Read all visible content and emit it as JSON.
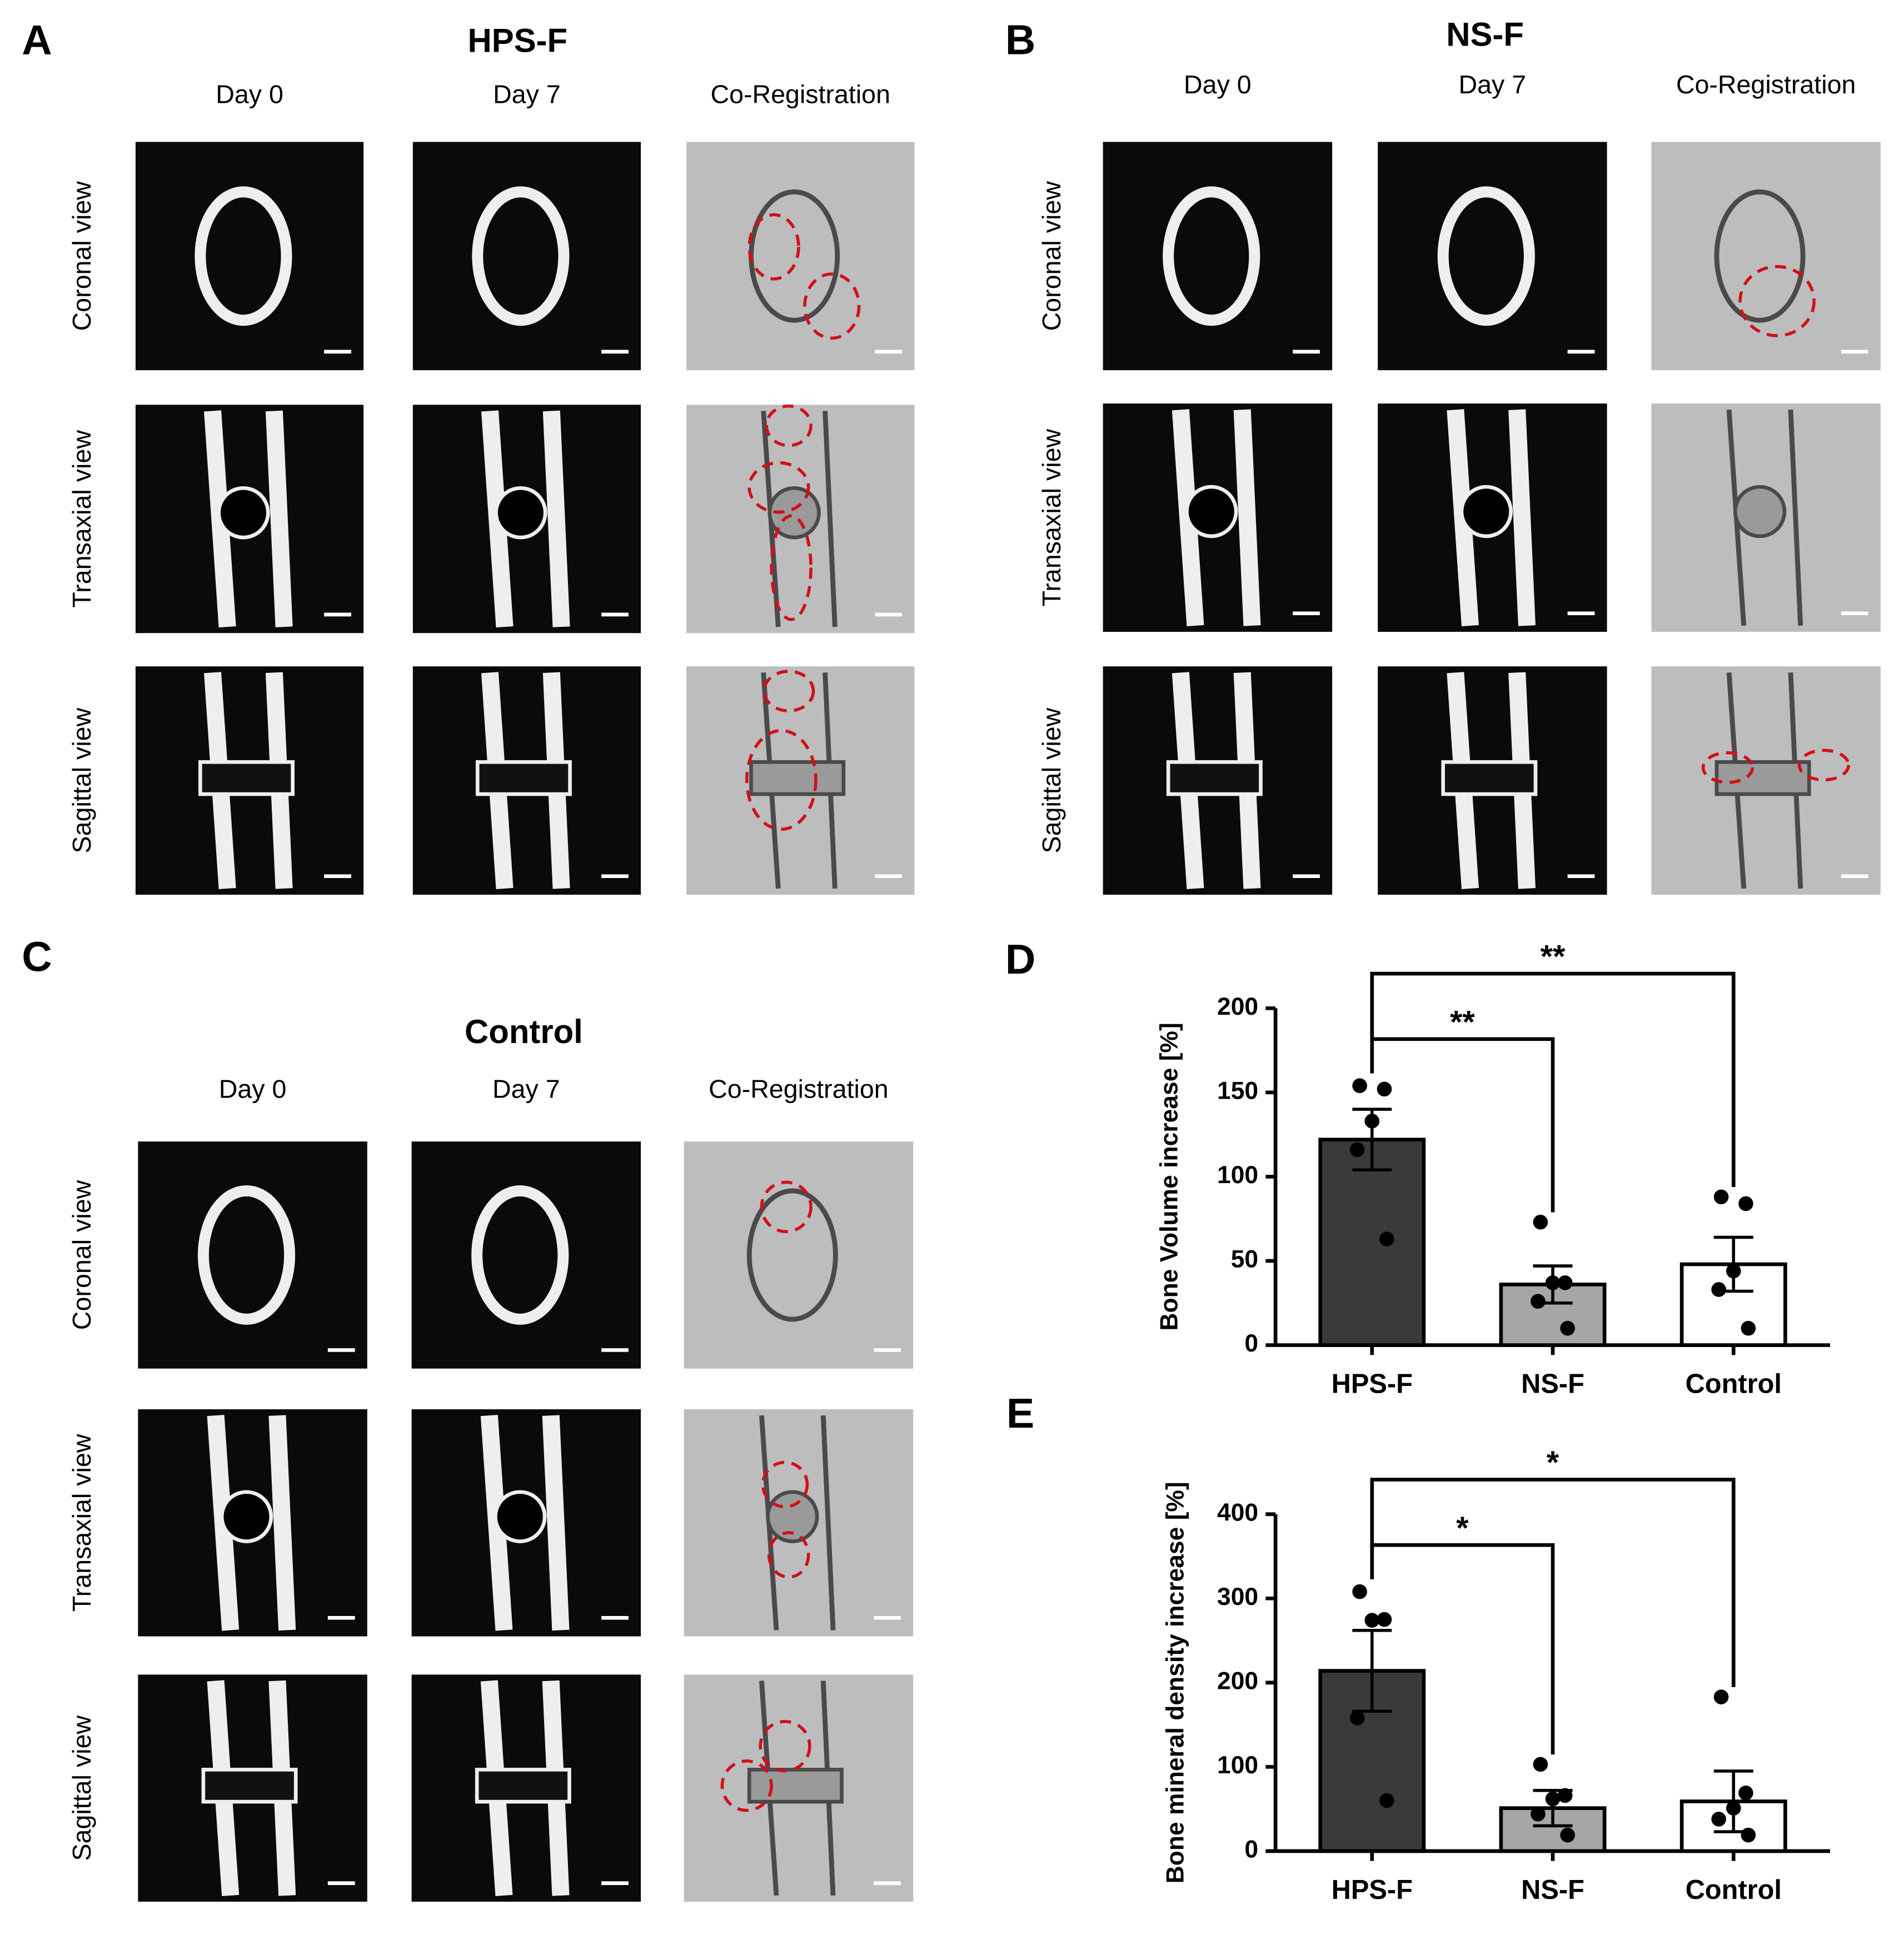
{
  "panels": [
    {
      "letter": "A",
      "title": "HPS-F",
      "columns": [
        "Day 0",
        "Day 7",
        "Co-Registration"
      ],
      "rows": [
        "Coronal view",
        "Transaxial view",
        "Sagittal view"
      ]
    },
    {
      "letter": "B",
      "title": "NS-F",
      "columns": [
        "Day 0",
        "Day 7",
        "Co-Registration"
      ],
      "rows": [
        "Coronal view",
        "Transaxial view",
        "Sagittal view"
      ]
    },
    {
      "letter": "C",
      "title": "Control",
      "columns": [
        "Day 0",
        "Day 7",
        "Co-Registration"
      ],
      "rows": [
        "Coronal view",
        "Transaxial view",
        "Sagittal view"
      ]
    }
  ],
  "chart_data": [
    {
      "type": "bar",
      "panel_label": "D",
      "y_label": "Bone Volume increase [%]",
      "categories": [
        "HPS-F",
        "NS-F",
        "Control"
      ],
      "values": [
        122,
        36,
        48
      ],
      "errors": [
        18,
        11,
        16
      ],
      "points": [
        [
          154,
          152,
          133,
          116,
          63
        ],
        [
          73,
          37,
          37,
          26,
          10
        ],
        [
          88,
          84,
          44,
          33,
          10
        ]
      ],
      "colors": [
        "#3a3a3a",
        "#a6a6a6",
        "#ffffff"
      ],
      "ylim": [
        0,
        200
      ],
      "yticks": [
        0,
        50,
        100,
        150,
        200
      ],
      "annotations": [
        "**",
        "**"
      ]
    },
    {
      "type": "bar",
      "panel_label": "E",
      "y_label": "Bone mineral density increase [%]",
      "categories": [
        "HPS-F",
        "NS-F",
        "Control"
      ],
      "values": [
        214,
        51,
        59
      ],
      "errors": [
        48,
        21,
        36
      ],
      "points": [
        [
          308,
          275,
          274,
          158,
          60
        ],
        [
          103,
          66,
          62,
          44,
          19
        ],
        [
          183,
          69,
          51,
          38,
          19
        ]
      ],
      "colors": [
        "#3a3a3a",
        "#a6a6a6",
        "#ffffff"
      ],
      "ylim": [
        0,
        400
      ],
      "yticks": [
        0,
        100,
        200,
        300,
        400
      ],
      "annotations": [
        "*",
        "*"
      ]
    }
  ]
}
